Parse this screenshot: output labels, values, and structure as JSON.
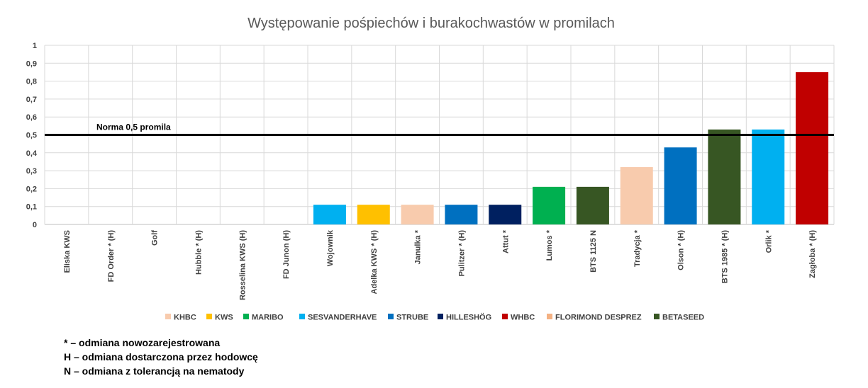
{
  "chart_data": {
    "type": "bar",
    "title": "Występowanie pośpiechów i burakochwastów w promilach",
    "ylim": [
      0,
      1
    ],
    "yticks": [
      "0",
      "0,1",
      "0,2",
      "0,3",
      "0,4",
      "0,5",
      "0,6",
      "0,7",
      "0,8",
      "0,9",
      "1"
    ],
    "grid": true,
    "legend_position": "bottom",
    "categories": [
      "Eliska KWS",
      "FD Order * (H)",
      "Golf",
      "Hubble * (H)",
      "Rosselina KWS (H)",
      "FD Junon (H)",
      "Wojownik",
      "Adelka KWS * (H)",
      "Janulka *",
      "Pulitzer * (H)",
      "Attut *",
      "Lumos *",
      "BTS 1125 N",
      "Tradycja *",
      "Olson * (H)",
      "BTS 1985 * (H)",
      "Orlik *",
      "Zagłoba * (H)"
    ],
    "values": [
      0,
      0,
      0,
      0,
      0,
      0,
      0.11,
      0.11,
      0.11,
      0.11,
      0.11,
      0.21,
      0.21,
      0.32,
      0.43,
      0.53,
      0.53,
      0.85
    ],
    "breeders": [
      "KWS",
      "FLORIMOND DESPREZ",
      "STRUBE",
      "STRUBE",
      "KWS",
      "FLORIMOND DESPREZ",
      "SESVANDERHAVE",
      "KWS",
      "KHBC",
      "STRUBE",
      "HILLESHÖG",
      "MARIBO",
      "BETASEED",
      "KHBC",
      "STRUBE",
      "BETASEED",
      "SESVANDERHAVE",
      "WHBC"
    ],
    "legend": [
      {
        "name": "KHBC",
        "color": "#F8CBAD"
      },
      {
        "name": "KWS",
        "color": "#FFC000"
      },
      {
        "name": "MARIBO",
        "color": "#00B050"
      },
      {
        "name": "SESVANDERHAVE",
        "color": "#00B0F0"
      },
      {
        "name": "STRUBE",
        "color": "#0070C0"
      },
      {
        "name": "HILLESHÖG",
        "color": "#002060"
      },
      {
        "name": "WHBC",
        "color": "#C00000"
      },
      {
        "name": "FLORIMOND DESPREZ",
        "color": "#F4B183"
      },
      {
        "name": "BETASEED",
        "color": "#375623"
      }
    ],
    "reference_line": {
      "value": 0.5,
      "label": "Norma 0,5 promila",
      "color": "#000000"
    }
  },
  "notes": [
    "* – odmiana nowozarejestrowana",
    "H – odmiana dostarczona przez hodowcę",
    "N – odmiana z tolerancją na nematody"
  ]
}
